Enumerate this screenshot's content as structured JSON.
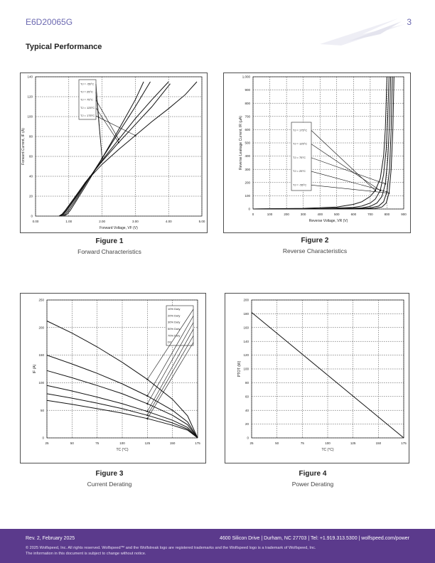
{
  "header": {
    "part_number": "E6D20065G",
    "page_number": "3"
  },
  "section_title": "Typical Performance",
  "figures": [
    {
      "title": "Figure 1",
      "caption": "Forward Characteristics"
    },
    {
      "title": "Figure 2",
      "caption": "Reverse Characteristics"
    },
    {
      "title": "Figure 3",
      "caption": "Current Derating"
    },
    {
      "title": "Figure 4",
      "caption": "Power Derating"
    }
  ],
  "chart_data": [
    {
      "type": "line",
      "xlabel": "Forward Voltage, VF (V)",
      "ylabel": "Forward Current, IF (A)",
      "xlim": [
        0,
        5
      ],
      "ylim": [
        0,
        140
      ],
      "xticks": [
        "0.00",
        "1.00",
        "2.00",
        "3.00",
        "4.00",
        "5.00"
      ],
      "yticks": [
        "0",
        "20",
        "40",
        "60",
        "80",
        "100",
        "120",
        "140"
      ],
      "legend": [
        "TJ = -55°C",
        "TJ = 25°C",
        "TJ = 75°C",
        "TJ = 125°C",
        "TJ = 175°C"
      ],
      "series": [
        {
          "name": "TJ = -55°C",
          "x": [
            0.85,
            0.95,
            1.05,
            1.2,
            1.5,
            2.0,
            2.5,
            3.0,
            3.25
          ],
          "y": [
            0,
            2,
            6,
            14,
            30,
            58,
            87,
            117,
            135
          ]
        },
        {
          "name": "TJ = 25°C",
          "x": [
            0.8,
            0.9,
            1.0,
            1.2,
            1.5,
            2.0,
            2.5,
            3.0,
            3.45
          ],
          "y": [
            0,
            2,
            6,
            16,
            32,
            58,
            84,
            110,
            135
          ]
        },
        {
          "name": "TJ = 75°C",
          "x": [
            0.75,
            0.85,
            0.95,
            1.2,
            1.5,
            2.0,
            2.5,
            3.0,
            3.5,
            4.0
          ],
          "y": [
            0,
            2,
            6,
            18,
            33,
            56,
            77,
            98,
            117,
            135
          ]
        },
        {
          "name": "TJ = 125°C",
          "x": [
            0.72,
            0.82,
            0.92,
            1.2,
            1.5,
            2.0,
            2.5,
            3.0,
            3.5,
            4.05
          ],
          "y": [
            0,
            2,
            6,
            19,
            34,
            55,
            74,
            92,
            110,
            133
          ]
        },
        {
          "name": "TJ = 175°C",
          "x": [
            0.7,
            0.8,
            0.9,
            1.2,
            1.5,
            2.0,
            2.5,
            3.0,
            3.5,
            4.0,
            4.5,
            4.85
          ],
          "y": [
            0,
            2,
            6,
            20,
            34,
            52,
            67,
            81,
            95,
            108,
            122,
            135
          ]
        }
      ]
    },
    {
      "type": "line",
      "xlabel": "Reverse Voltage, VR (V)",
      "ylabel": "Reverse Leakage Current, IR (μA)",
      "xlim": [
        0,
        900
      ],
      "ylim": [
        0,
        1000
      ],
      "xticks": [
        "0",
        "100",
        "200",
        "300",
        "400",
        "500",
        "600",
        "700",
        "800",
        "900"
      ],
      "yticks": [
        "0",
        "100",
        "200",
        "300",
        "400",
        "500",
        "600",
        "700",
        "800",
        "900",
        "1,000"
      ],
      "legend": [
        "TJ = 175°C",
        "TJ = 125°C",
        "TJ = 75°C",
        "TJ = 25°C",
        "TJ = -55°C"
      ],
      "series": [
        {
          "name": "TJ = 175°C",
          "x": [
            0,
            300,
            500,
            600,
            650,
            700,
            730,
            760,
            780,
            790,
            800
          ],
          "y": [
            0,
            5,
            15,
            35,
            55,
            95,
            140,
            230,
            400,
            600,
            1000
          ]
        },
        {
          "name": "TJ = 125°C",
          "x": [
            0,
            400,
            600,
            650,
            700,
            730,
            760,
            780,
            795,
            805,
            812
          ],
          "y": [
            0,
            3,
            12,
            22,
            45,
            75,
            140,
            260,
            450,
            700,
            1000
          ]
        },
        {
          "name": "TJ = 75°C",
          "x": [
            0,
            500,
            650,
            700,
            740,
            770,
            790,
            805,
            815,
            822
          ],
          "y": [
            0,
            2,
            8,
            20,
            45,
            95,
            190,
            380,
            650,
            1000
          ]
        },
        {
          "name": "TJ = 25°C",
          "x": [
            0,
            600,
            700,
            750,
            780,
            800,
            815,
            825,
            832
          ],
          "y": [
            0,
            2,
            8,
            22,
            55,
            130,
            300,
            600,
            1000
          ]
        },
        {
          "name": "TJ = -55°C",
          "x": [
            0,
            650,
            730,
            770,
            795,
            812,
            825,
            835,
            842
          ],
          "y": [
            0,
            1,
            5,
            15,
            45,
            120,
            300,
            600,
            1000
          ]
        }
      ]
    },
    {
      "type": "line",
      "xlabel": "TC (°C)",
      "ylabel": "IF (A)",
      "xlim": [
        25,
        175
      ],
      "ylim": [
        0,
        250
      ],
      "xticks": [
        "25",
        "50",
        "75",
        "100",
        "125",
        "150",
        "175"
      ],
      "yticks": [
        "0",
        "50",
        "100",
        "150",
        "200",
        "250"
      ],
      "legend": [
        "10% Duty",
        "20% Duty",
        "30% Duty",
        "50% Duty",
        "70% Duty",
        "DC"
      ],
      "series": [
        {
          "name": "10% Duty",
          "x": [
            25,
            50,
            75,
            100,
            125,
            150,
            165,
            175
          ],
          "y": [
            212,
            190,
            165,
            137,
            106,
            70,
            40,
            0
          ]
        },
        {
          "name": "20% Duty",
          "x": [
            25,
            50,
            75,
            100,
            125,
            150,
            165,
            175
          ],
          "y": [
            150,
            134,
            117,
            98,
            76,
            50,
            29,
            0
          ]
        },
        {
          "name": "30% Duty",
          "x": [
            25,
            50,
            75,
            100,
            125,
            150,
            165,
            175
          ],
          "y": [
            122,
            109,
            95,
            80,
            62,
            41,
            24,
            0
          ]
        },
        {
          "name": "50% Duty",
          "x": [
            25,
            50,
            75,
            100,
            125,
            150,
            165,
            175
          ],
          "y": [
            95,
            85,
            74,
            62,
            48,
            32,
            19,
            0
          ]
        },
        {
          "name": "70% Duty",
          "x": [
            25,
            50,
            75,
            100,
            125,
            150,
            165,
            175
          ],
          "y": [
            80,
            72,
            63,
            53,
            41,
            27,
            16,
            0
          ]
        },
        {
          "name": "DC",
          "x": [
            25,
            50,
            75,
            100,
            125,
            150,
            165,
            175
          ],
          "y": [
            68,
            61,
            53,
            45,
            35,
            23,
            14,
            0
          ]
        }
      ]
    },
    {
      "type": "line",
      "xlabel": "TC (°C)",
      "ylabel": "PTOT (W)",
      "xlim": [
        25,
        175
      ],
      "ylim": [
        0,
        200
      ],
      "xticks": [
        "25",
        "50",
        "75",
        "100",
        "125",
        "150",
        "175"
      ],
      "yticks": [
        "0",
        "20",
        "40",
        "60",
        "80",
        "100",
        "120",
        "140",
        "160",
        "180",
        "200"
      ],
      "series": [
        {
          "name": "",
          "x": [
            25,
            175
          ],
          "y": [
            182,
            0
          ]
        }
      ]
    }
  ],
  "footer": {
    "revision": "Rev. 2, February 2025",
    "address": "4600 Silicon Drive  |  Durham, NC 27703  |  Tel: +1.919.313.5300  |  wolfspeed.com/power",
    "copyright": "© 2025 Wolfspeed, Inc. All rights reserved. Wolfspeed™ and the Wolfstreak logo are registered trademarks and the Wolfspeed logo is a trademark of Wolfspeed, Inc.",
    "disclaimer": "The information in this document is subject to change without notice."
  },
  "colors": {
    "footer_bg": "#5b3a8c",
    "header_text": "#6b68b0"
  }
}
